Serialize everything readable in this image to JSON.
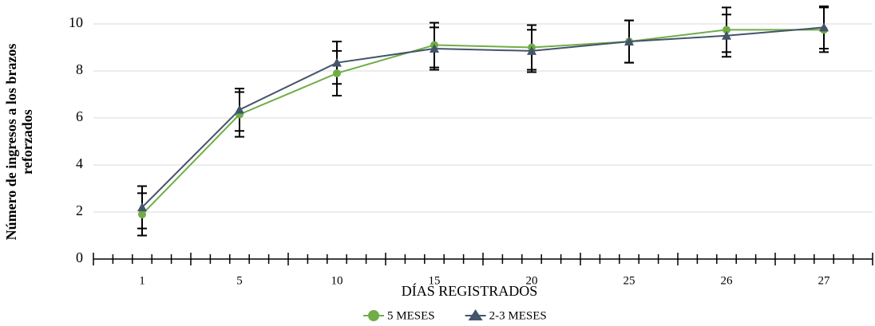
{
  "chart_data": {
    "type": "line",
    "x_label": "DÍAS REGISTRADOS",
    "y_label": [
      "Número de ingresos a los brazos",
      "reforzados"
    ],
    "categories": [
      "1",
      "5",
      "10",
      "15",
      "20",
      "25",
      "26",
      "27"
    ],
    "series": [
      {
        "name": "5 MESES",
        "color": "#70ad47",
        "marker": "circle",
        "values": [
          1.9,
          6.15,
          7.9,
          9.1,
          9.0,
          9.25,
          9.75,
          9.75
        ],
        "errors": [
          0.9,
          0.95,
          0.95,
          0.95,
          0.95,
          0.9,
          0.95,
          0.95
        ]
      },
      {
        "name": "2-3 MESES",
        "color": "#44546a",
        "marker": "triangle",
        "values": [
          2.2,
          6.35,
          8.35,
          8.95,
          8.85,
          9.25,
          9.5,
          9.85
        ],
        "errors": [
          0.9,
          0.9,
          0.9,
          0.9,
          0.9,
          0.9,
          0.9,
          0.9
        ]
      }
    ],
    "ylim": [
      0,
      10
    ],
    "yticks": [
      0,
      2,
      4,
      6,
      8,
      10
    ],
    "grid": true,
    "legend": "bottom"
  }
}
